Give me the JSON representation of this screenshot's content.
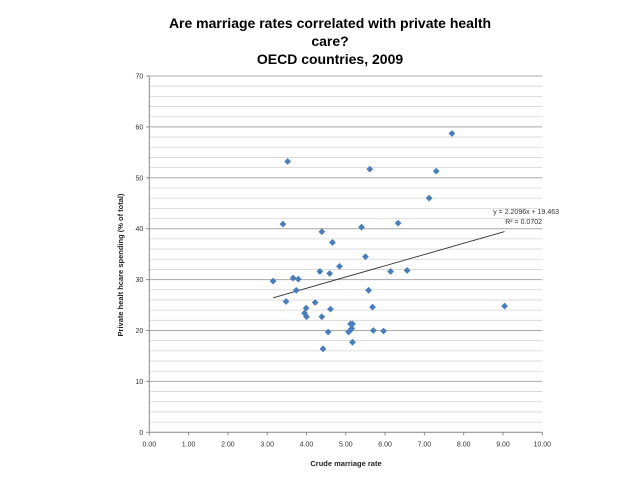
{
  "chart_data": {
    "type": "scatter",
    "title": [
      "Are marriage rates correlated with private health",
      "care?",
      "OECD countries, 2009"
    ],
    "xlabel": "Crude marriage rate",
    "ylabel": "Private healt hcare spending  (% of total)",
    "xlim": [
      0,
      10
    ],
    "ylim": [
      0,
      70
    ],
    "xticks": [
      "0.00",
      "1.00",
      "2.00",
      "3.00",
      "4.00",
      "5.00",
      "6.00",
      "7.00",
      "8.00",
      "9.00",
      "10.00"
    ],
    "yticks": [
      "0",
      "10",
      "20",
      "30",
      "40",
      "50",
      "60",
      "70"
    ],
    "grid": {
      "major_y": 10,
      "minor_y": 2
    },
    "marker_color": "#4a7ebb",
    "points": [
      [
        3.15,
        29.7
      ],
      [
        3.4,
        40.9
      ],
      [
        3.52,
        53.2
      ],
      [
        3.48,
        25.7
      ],
      [
        3.66,
        30.3
      ],
      [
        3.79,
        30.1
      ],
      [
        3.74,
        27.9
      ],
      [
        3.99,
        24.4
      ],
      [
        3.95,
        23.4
      ],
      [
        4.0,
        22.7
      ],
      [
        4.22,
        25.5
      ],
      [
        4.34,
        31.6
      ],
      [
        4.39,
        39.4
      ],
      [
        4.39,
        22.7
      ],
      [
        4.42,
        16.4
      ],
      [
        4.55,
        19.7
      ],
      [
        4.59,
        31.2
      ],
      [
        4.61,
        24.2
      ],
      [
        4.66,
        37.3
      ],
      [
        4.84,
        32.6
      ],
      [
        5.07,
        19.7
      ],
      [
        5.12,
        21.3
      ],
      [
        5.17,
        21.3
      ],
      [
        5.15,
        20.4
      ],
      [
        5.11,
        20.0
      ],
      [
        5.17,
        17.7
      ],
      [
        5.4,
        40.3
      ],
      [
        5.5,
        34.5
      ],
      [
        5.61,
        51.7
      ],
      [
        5.58,
        27.9
      ],
      [
        5.68,
        24.6
      ],
      [
        5.7,
        20.0
      ],
      [
        5.96,
        19.9
      ],
      [
        6.14,
        31.6
      ],
      [
        6.33,
        41.1
      ],
      [
        6.56,
        31.8
      ],
      [
        7.12,
        46.0
      ],
      [
        7.3,
        51.3
      ],
      [
        7.7,
        58.7
      ],
      [
        9.04,
        24.8
      ]
    ],
    "trendline": {
      "type": "linear",
      "slope": 2.2096,
      "intercept": 19.463,
      "x_range": [
        3.15,
        9.04
      ],
      "equation_label": "y = 2.2096x + 19.463",
      "r2_label": "R² = 0.0702",
      "color": "#333333"
    }
  }
}
